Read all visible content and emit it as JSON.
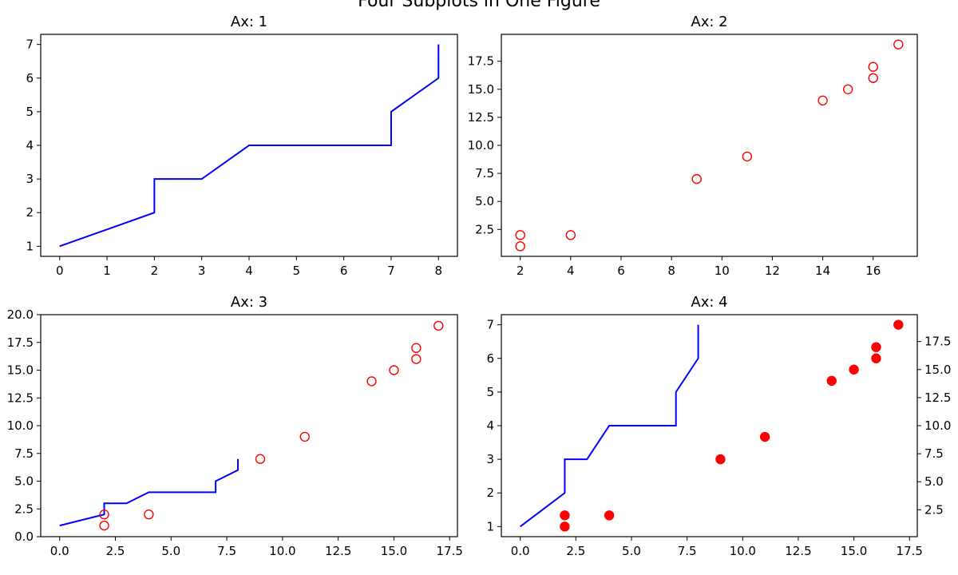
{
  "figure": {
    "suptitle": "Four Subplots in One Figure"
  },
  "colors": {
    "line": "#0000ff",
    "marker": "#ff0000",
    "axes": "#000000"
  },
  "chart_data": [
    {
      "title": "Ax: 1",
      "type": "line",
      "x": [
        0,
        1,
        2,
        2,
        3,
        4,
        5,
        6,
        7,
        7,
        8,
        8
      ],
      "y": [
        1,
        1.5,
        2,
        3,
        3,
        4,
        4,
        4,
        4,
        5,
        6,
        7
      ],
      "xlim": [
        -0.4,
        8.4
      ],
      "ylim": [
        0.7,
        7.3
      ],
      "xticks": [
        0,
        1,
        2,
        3,
        4,
        5,
        6,
        7,
        8
      ],
      "yticks": [
        1,
        2,
        3,
        4,
        5,
        6,
        7
      ],
      "xtick_labels": [
        "0",
        "1",
        "2",
        "3",
        "4",
        "5",
        "6",
        "7",
        "8"
      ],
      "ytick_labels": [
        "1",
        "2",
        "3",
        "4",
        "5",
        "6",
        "7"
      ]
    },
    {
      "title": "Ax: 2",
      "type": "scatter",
      "marker": "hollow-circle",
      "x": [
        2,
        2,
        4,
        9,
        11,
        14,
        15,
        16,
        16,
        17
      ],
      "y": [
        1,
        2,
        2,
        7,
        9,
        14,
        15,
        16,
        17,
        19
      ],
      "xlim": [
        1.25,
        17.75
      ],
      "ylim": [
        0.1,
        19.9
      ],
      "xticks": [
        2,
        4,
        6,
        8,
        10,
        12,
        14,
        16
      ],
      "yticks": [
        2.5,
        5.0,
        7.5,
        10.0,
        12.5,
        15.0,
        17.5
      ],
      "xtick_labels": [
        "2",
        "4",
        "6",
        "8",
        "10",
        "12",
        "14",
        "16"
      ],
      "ytick_labels": [
        "2.5",
        "5.0",
        "7.5",
        "10.0",
        "12.5",
        "15.0",
        "17.5"
      ]
    },
    {
      "title": "Ax: 3",
      "type": "line+scatter",
      "line": {
        "x": [
          0,
          1,
          2,
          2,
          3,
          4,
          5,
          6,
          7,
          7,
          8,
          8
        ],
        "y": [
          1,
          1.5,
          2,
          3,
          3,
          4,
          4,
          4,
          4,
          5,
          6,
          7
        ]
      },
      "scatter": {
        "marker": "hollow-circle",
        "x": [
          2,
          2,
          4,
          9,
          11,
          14,
          15,
          16,
          16,
          17
        ],
        "y": [
          1,
          2,
          2,
          7,
          9,
          14,
          15,
          16,
          17,
          19
        ]
      },
      "xlim": [
        -0.85,
        17.85
      ],
      "ylim": [
        0,
        20
      ],
      "xticks": [
        0,
        2.5,
        5.0,
        7.5,
        10.0,
        12.5,
        15.0,
        17.5
      ],
      "yticks": [
        0,
        2.5,
        5.0,
        7.5,
        10.0,
        12.5,
        15.0,
        17.5,
        20.0
      ],
      "xtick_labels": [
        "0.0",
        "2.5",
        "5.0",
        "7.5",
        "10.0",
        "12.5",
        "15.0",
        "17.5"
      ],
      "ytick_labels": [
        "0.0",
        "2.5",
        "5.0",
        "7.5",
        "10.0",
        "12.5",
        "15.0",
        "17.5",
        "20.0"
      ]
    },
    {
      "title": "Ax: 4",
      "type": "line+scatter-twin-y",
      "line": {
        "x": [
          0,
          1,
          2,
          2,
          3,
          4,
          5,
          6,
          7,
          7,
          8,
          8
        ],
        "y": [
          1,
          1.5,
          2,
          3,
          3,
          4,
          4,
          4,
          4,
          5,
          6,
          7
        ]
      },
      "scatter": {
        "marker": "filled-circle",
        "axis": "right",
        "x": [
          2,
          2,
          4,
          9,
          11,
          14,
          15,
          16,
          16,
          17
        ],
        "y": [
          1,
          2,
          2,
          7,
          9,
          14,
          15,
          16,
          17,
          19
        ]
      },
      "xlim": [
        -0.85,
        17.85
      ],
      "ylim": [
        0.7,
        7.3
      ],
      "ylim_right": [
        0.1,
        19.9
      ],
      "xticks": [
        0,
        2.5,
        5.0,
        7.5,
        10.0,
        12.5,
        15.0,
        17.5
      ],
      "yticks": [
        1,
        2,
        3,
        4,
        5,
        6,
        7
      ],
      "yticks_right": [
        2.5,
        5.0,
        7.5,
        10.0,
        12.5,
        15.0,
        17.5
      ],
      "xtick_labels": [
        "0.0",
        "2.5",
        "5.0",
        "7.5",
        "10.0",
        "12.5",
        "15.0",
        "17.5"
      ],
      "ytick_labels": [
        "1",
        "2",
        "3",
        "4",
        "5",
        "6",
        "7"
      ],
      "ytick_labels_right": [
        "2.5",
        "5.0",
        "7.5",
        "10.0",
        "12.5",
        "15.0",
        "17.5"
      ]
    }
  ]
}
